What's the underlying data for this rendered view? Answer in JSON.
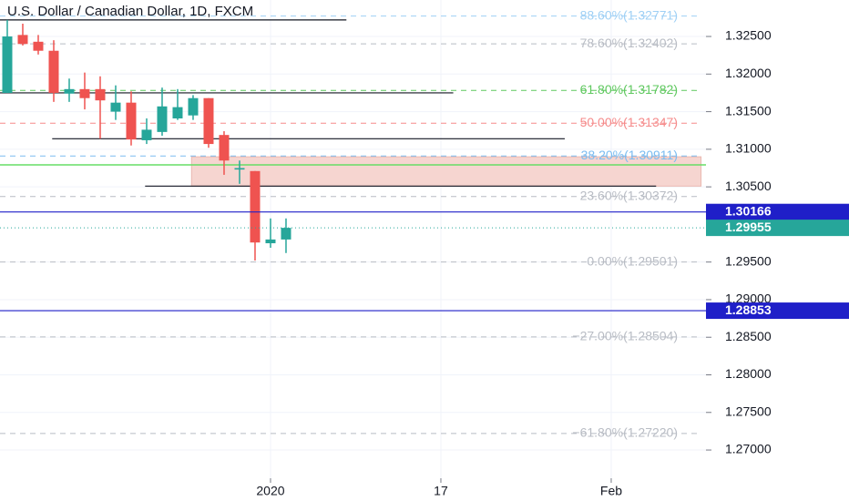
{
  "chart_data": {
    "type": "candlestick",
    "title": "U.S. Dollar / Canadian Dollar, 1D, FXCM",
    "up_color": "#26a69a",
    "down_color": "#ef5350",
    "x": [
      0,
      1,
      2,
      3,
      4,
      5,
      6,
      7,
      8,
      9,
      10,
      11,
      12,
      13,
      14,
      15,
      16,
      17,
      18
    ],
    "open": [
      1.3175,
      1.3252,
      1.3243,
      1.3231,
      1.3174,
      1.318,
      1.318,
      1.315,
      1.3162,
      1.3112,
      1.3123,
      1.3141,
      1.3145,
      1.3168,
      1.3119,
      1.3073,
      1.3071,
      1.2975,
      1.298
    ],
    "high": [
      1.3272,
      1.3267,
      1.3252,
      1.3245,
      1.3194,
      1.3202,
      1.3197,
      1.3185,
      1.3177,
      1.3141,
      1.3182,
      1.318,
      1.3172,
      1.3168,
      1.3124,
      1.3085,
      1.3071,
      1.3008,
      1.3008
    ],
    "low": [
      1.3175,
      1.3238,
      1.3226,
      1.3163,
      1.3163,
      1.3153,
      1.3114,
      1.3139,
      1.3105,
      1.3107,
      1.3118,
      1.3139,
      1.3139,
      1.3102,
      1.3066,
      1.3054,
      1.2952,
      1.2969,
      1.2962
    ],
    "close": [
      1.325,
      1.324,
      1.3231,
      1.3175,
      1.318,
      1.3168,
      1.3165,
      1.3162,
      1.3113,
      1.3126,
      1.3157,
      1.3156,
      1.3168,
      1.3107,
      1.3085,
      1.3075,
      1.2976,
      1.298,
      1.29955
    ],
    "xlim": [
      -0.47,
      45.12
    ],
    "xticks": [
      {
        "value": 17,
        "label": "2020"
      },
      {
        "value": 28,
        "label": "17"
      },
      {
        "value": 39,
        "label": "Feb"
      }
    ],
    "ylim": [
      1.26625,
      1.32985
    ],
    "yticks": [
      {
        "value": 1.325,
        "label": "1.32500"
      },
      {
        "value": 1.32,
        "label": "1.32000"
      },
      {
        "value": 1.315,
        "label": "1.31500"
      },
      {
        "value": 1.31,
        "label": "1.31000"
      },
      {
        "value": 1.305,
        "label": "1.30500"
      },
      {
        "value": 1.295,
        "label": "1.29500"
      },
      {
        "value": 1.29,
        "label": "1.29000"
      },
      {
        "value": 1.285,
        "label": "1.28500"
      },
      {
        "value": 1.28,
        "label": "1.28000"
      },
      {
        "value": 1.275,
        "label": "1.27500"
      },
      {
        "value": 1.27,
        "label": "1.27000"
      }
    ],
    "grid": true,
    "fib_levels": [
      {
        "label": "88.60%(1.32771)",
        "value": 1.32771,
        "color": "#9fd0f5"
      },
      {
        "label": "78.60%(1.32402)",
        "value": 1.32402,
        "color": "#b8bcc4"
      },
      {
        "label": "61.80%(1.31782)",
        "value": 1.31782,
        "color": "#5fc85f"
      },
      {
        "label": "50.00%(1.31347)",
        "value": 1.31347,
        "color": "#f58a8a"
      },
      {
        "label": "38.20%(1.30911)",
        "value": 1.30911,
        "color": "#7bbcf0"
      },
      {
        "label": "23.60%(1.30372)",
        "value": 1.30372,
        "color": "#b8bcc4"
      },
      {
        "label": "0.00%(1.29501)",
        "value": 1.29501,
        "color": "#b8bcc4"
      },
      {
        "label": "−27.00%(1.28504)",
        "value": 1.28504,
        "color": "#b8bcc4"
      },
      {
        "label": "−61.80%(1.27220)",
        "value": 1.2722,
        "color": "#b8bcc4"
      }
    ],
    "price_lines": [
      {
        "value": 1.30166,
        "color": "#1f1fc8"
      },
      {
        "value": 1.28853,
        "color": "#1f1fc8"
      }
    ],
    "current_price": {
      "value": 1.29955,
      "color": "#26a69a"
    },
    "support_line": {
      "value": 1.30792,
      "color": "#66dd66"
    },
    "trend_lines": [
      {
        "value": 1.3272,
        "x": [
          -0.47,
          21.9
        ]
      },
      {
        "value": 1.3175,
        "x": [
          -0.47,
          28.8
        ]
      },
      {
        "value": 1.3114,
        "x": [
          2.9,
          36.0
        ]
      },
      {
        "value": 1.3051,
        "x": [
          8.9,
          41.9
        ]
      }
    ],
    "zone": {
      "low": 1.3051,
      "high": 1.309,
      "x": [
        11.9,
        44.8
      ],
      "color": "#f6d5d0"
    }
  }
}
